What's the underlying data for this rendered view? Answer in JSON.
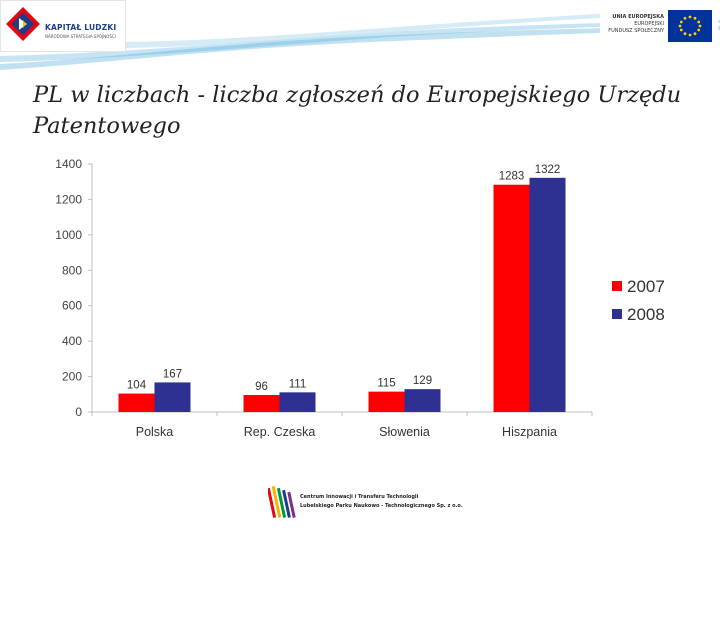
{
  "header": {
    "left_logo": {
      "name": "KAPITAŁ LUDZKI",
      "subtitle": "NARODOWA STRATEGIA SPÓJNOŚCI"
    },
    "right_logo": {
      "lines": [
        "UNIA EUROPEJSKA",
        "EUROPEJSKI",
        "FUNDUSZ SPOŁECZNY"
      ]
    }
  },
  "title": "PL w liczbach - liczba zgłoszeń do Europejskiego Urzędu Patentowego",
  "chart_data": {
    "type": "bar",
    "categories": [
      "Polska",
      "Rep. Czeska",
      "Słowenia",
      "Hiszpania"
    ],
    "series": [
      {
        "name": "2007",
        "values": [
          104,
          96,
          115,
          1283
        ],
        "color": "#ff0000"
      },
      {
        "name": "2008",
        "values": [
          167,
          111,
          129,
          1322
        ],
        "color": "#2e3192"
      }
    ],
    "ylim": [
      0,
      1400
    ],
    "yticks": [
      0,
      200,
      400,
      600,
      800,
      1000,
      1200,
      1400
    ],
    "grid": false,
    "legend": "right",
    "data_labels": true
  },
  "footer": {
    "lines": [
      "Centrum Innowacji i Transferu Technologii",
      "Lubelskiego Parku Naukowo - Technologicznego Sp. z o.o."
    ]
  }
}
